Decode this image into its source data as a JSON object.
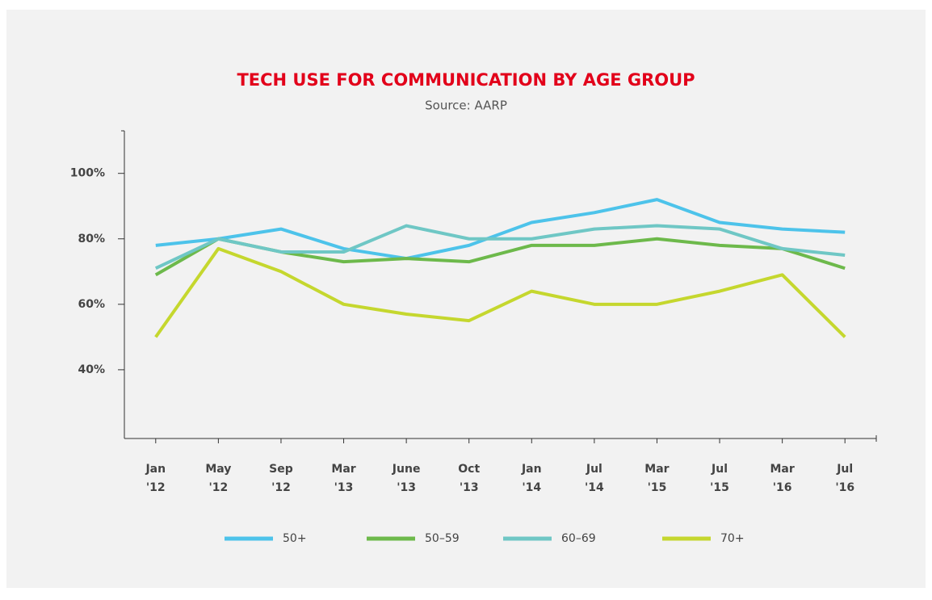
{
  "chart_data": {
    "type": "line",
    "title": "TECH USE FOR COMMUNICATION BY AGE GROUP",
    "subtitle": "Source: AARP",
    "categories": [
      "Jan '12",
      "May '12",
      "Sep '12",
      "Mar '13",
      "June '13",
      "Oct '13",
      "Jan '14",
      "Jul '14",
      "Mar '15",
      "Jul '15",
      "Mar '16",
      "Jul '16"
    ],
    "series": [
      {
        "name": "50+",
        "color": "#4dc3ea",
        "values": [
          78,
          80,
          83,
          77,
          74,
          78,
          85,
          88,
          92,
          85,
          83,
          82
        ]
      },
      {
        "name": "50–59",
        "color": "#6db94b",
        "values": [
          69,
          80,
          76,
          73,
          74,
          73,
          78,
          78,
          80,
          78,
          77,
          71
        ]
      },
      {
        "name": "60–69",
        "color": "#6fc7c5",
        "values": [
          71,
          80,
          76,
          76,
          84,
          80,
          80,
          83,
          84,
          83,
          77,
          75
        ]
      },
      {
        "name": "70+",
        "color": "#c5d72e",
        "values": [
          50,
          77,
          70,
          60,
          57,
          55,
          64,
          60,
          60,
          64,
          69,
          50
        ]
      }
    ],
    "ylim": [
      19,
      113
    ],
    "yticks": [
      {
        "value": 40,
        "label": "40%"
      },
      {
        "value": 60,
        "label": "60%"
      },
      {
        "value": 80,
        "label": "80%"
      },
      {
        "value": 100,
        "label": "100%"
      }
    ],
    "grid": false,
    "legend": "bottom"
  }
}
